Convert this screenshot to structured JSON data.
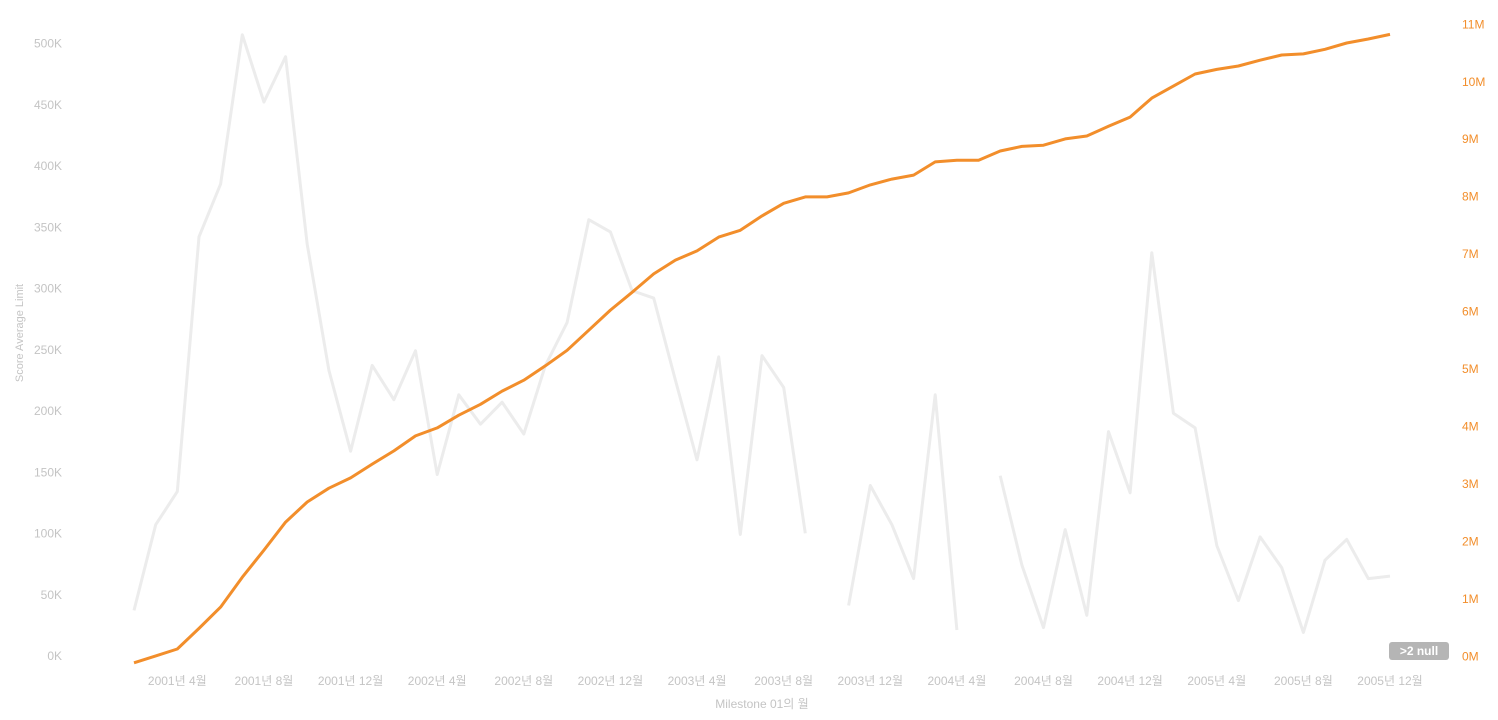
{
  "chart_data": {
    "type": "line",
    "y_label": "Score Average Limit",
    "x_label": "Milestone 01의 월",
    "null_indicator": ">2 null",
    "categories": [
      null,
      null,
      "2001년 4월",
      null,
      null,
      null,
      "2001년 8월",
      null,
      null,
      null,
      "2001년 12월",
      null,
      null,
      null,
      "2002년 4월",
      null,
      null,
      null,
      "2002년 8월",
      null,
      null,
      null,
      "2002년 12월",
      null,
      null,
      null,
      "2003년 4월",
      null,
      null,
      null,
      "2003년 8월",
      null,
      null,
      null,
      "2003년 12월",
      null,
      null,
      null,
      "2004년 4월",
      null,
      null,
      null,
      "2004년 8월",
      null,
      null,
      null,
      "2004년 12월",
      null,
      null,
      null,
      "2005년 4월",
      null,
      null,
      null,
      "2005년 8월",
      null,
      null,
      null,
      "2005년 12월"
    ],
    "series": [
      {
        "color": "#ececec",
        "axis": "y",
        "values": [
          38000,
          108000,
          135000,
          343000,
          386000,
          508000,
          453000,
          490000,
          337000,
          234000,
          168000,
          238000,
          210000,
          250000,
          149000,
          214000,
          190000,
          208000,
          182000,
          238000,
          273000,
          357000,
          347000,
          299000,
          293000,
          226000,
          161000,
          245000,
          100000,
          246000,
          220000,
          101000,
          null,
          42000,
          140000,
          108000,
          64000,
          214000,
          22000,
          null,
          148000,
          75000,
          24000,
          104000,
          34000,
          184000,
          134000,
          330000,
          199000,
          187000,
          91000,
          46000,
          98000,
          73000,
          20000,
          79000,
          96000,
          64000,
          66000
        ]
      },
      {
        "color": "#f28e2b",
        "axis": "y2",
        "values": [
          -100000,
          20000,
          140000,
          500000,
          870000,
          1390000,
          1860000,
          2350000,
          2700000,
          2940000,
          3120000,
          3360000,
          3590000,
          3850000,
          3990000,
          4210000,
          4400000,
          4630000,
          4820000,
          5070000,
          5340000,
          5690000,
          6040000,
          6350000,
          6670000,
          6910000,
          7070000,
          7310000,
          7430000,
          7680000,
          7900000,
          8010000,
          8010000,
          8080000,
          8220000,
          8320000,
          8390000,
          8620000,
          8650000,
          8650000,
          8810000,
          8890000,
          8910000,
          9020000,
          9070000,
          9240000,
          9400000,
          9730000,
          9940000,
          10150000,
          10230000,
          10290000,
          10390000,
          10480000,
          10500000,
          10580000,
          10690000,
          10760000,
          10840000
        ]
      }
    ],
    "ylim": [
      -9000,
      520000
    ],
    "yticks": [
      {
        "value": 0,
        "label": "0K"
      },
      {
        "value": 50000,
        "label": "50K"
      },
      {
        "value": 100000,
        "label": "100K"
      },
      {
        "value": 150000,
        "label": "150K"
      },
      {
        "value": 200000,
        "label": "200K"
      },
      {
        "value": 250000,
        "label": "250K"
      },
      {
        "value": 300000,
        "label": "300K"
      },
      {
        "value": 350000,
        "label": "350K"
      },
      {
        "value": 400000,
        "label": "400K"
      },
      {
        "value": 450000,
        "label": "450K"
      },
      {
        "value": 500000,
        "label": "500K"
      }
    ],
    "y2lim": [
      -190000,
      11090000
    ],
    "y2ticks": [
      {
        "value": 0,
        "label": "0M"
      },
      {
        "value": 1000000,
        "label": "1M"
      },
      {
        "value": 2000000,
        "label": "2M"
      },
      {
        "value": 3000000,
        "label": "3M"
      },
      {
        "value": 4000000,
        "label": "4M"
      },
      {
        "value": 5000000,
        "label": "5M"
      },
      {
        "value": 6000000,
        "label": "6M"
      },
      {
        "value": 7000000,
        "label": "7M"
      },
      {
        "value": 8000000,
        "label": "8M"
      },
      {
        "value": 9000000,
        "label": "9M"
      },
      {
        "value": 10000000,
        "label": "10M"
      },
      {
        "value": 11000000,
        "label": "11M"
      }
    ],
    "y2_color": "#f28e2b"
  }
}
